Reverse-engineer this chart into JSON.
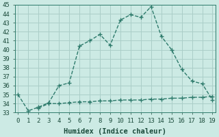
{
  "xlabel": "Humidex (Indice chaleur)",
  "x": [
    0,
    1,
    2,
    3,
    4,
    5,
    6,
    7,
    8,
    9,
    10,
    11,
    12,
    13,
    14,
    15,
    16,
    17,
    18,
    19
  ],
  "line1_y": [
    35.0,
    33.2,
    33.6,
    34.1,
    36.0,
    36.3,
    40.4,
    41.0,
    41.7,
    40.5,
    43.3,
    43.9,
    43.6,
    44.8,
    41.5,
    40.0,
    37.8,
    36.5,
    36.2,
    34.4
  ],
  "line2_y": [
    null,
    null,
    33.5,
    34.0,
    34.0,
    34.1,
    34.2,
    34.2,
    34.3,
    34.3,
    34.4,
    34.4,
    34.4,
    34.5,
    34.5,
    34.6,
    34.6,
    34.7,
    34.7,
    34.8
  ],
  "line_color": "#2d7a6b",
  "bg_color": "#cceae4",
  "grid_color": "#aacec8",
  "ylim": [
    33,
    45
  ],
  "xlim": [
    -0.3,
    19.3
  ],
  "yticks": [
    33,
    34,
    35,
    36,
    37,
    38,
    39,
    40,
    41,
    42,
    43,
    44,
    45
  ],
  "xticks": [
    0,
    1,
    2,
    3,
    4,
    5,
    6,
    7,
    8,
    9,
    10,
    11,
    12,
    13,
    14,
    15,
    16,
    17,
    18,
    19
  ],
  "marker": "+",
  "markersize": 5,
  "linewidth": 1.0,
  "linestyle": "--",
  "tick_fontsize": 6.5,
  "xlabel_fontsize": 7.5
}
